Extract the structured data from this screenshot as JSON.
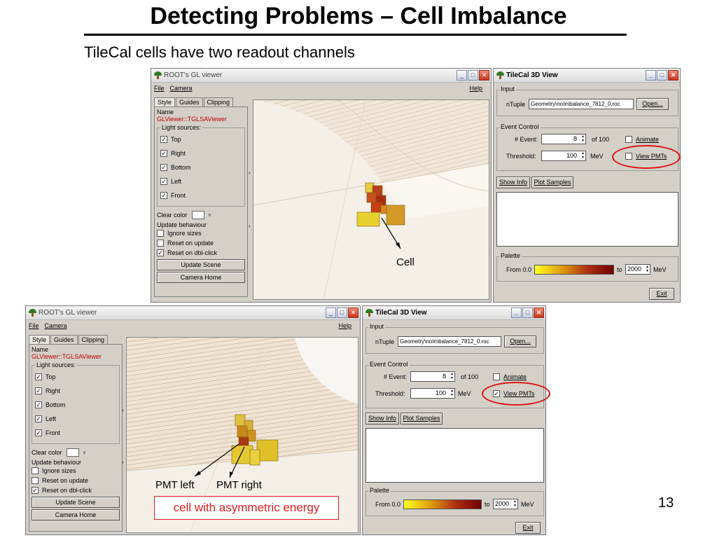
{
  "slide": {
    "title": "Detecting Problems – Cell Imbalance",
    "subtitle": "TileCal cells have two readout channels",
    "page_number": "13"
  },
  "gl_viewer": {
    "window_title": "ROOT's GL viewer",
    "menu": {
      "file": "File",
      "camera": "Camera",
      "help": "Help"
    },
    "tabs": [
      "Style",
      "Guides",
      "Clipping"
    ],
    "name_label": "Name",
    "name_value": "GLViewer::TGLSAViewer",
    "light_sources_label": "Light sources:",
    "lights": [
      "Top",
      "Right",
      "Bottom",
      "Left",
      "Front"
    ],
    "clear_color_label": "Clear color",
    "update_behaviour_label": "Update behaviour",
    "update_options": [
      {
        "label": "Ignore sizes",
        "checked": false
      },
      {
        "label": "Reset on update",
        "checked": false
      },
      {
        "label": "Reset on dbl-click",
        "checked": true
      }
    ],
    "update_scene_button": "Update Scene",
    "camera_home_button": "Camera Home"
  },
  "tilecal_view": {
    "window_title": "TileCal 3D View",
    "input_group": "Input",
    "ntuple_label": "nTuple",
    "ntuple_value": "Geometry\\noImbalance_7812_0.roc",
    "open_button": "Open...",
    "event_control_group": "Event Control",
    "event_label": "# Event:",
    "event_value": "8",
    "event_of": "of 100",
    "animate_label": "Animate",
    "threshold_label": "Threshold:",
    "threshold_value": "100",
    "threshold_unit": "MeV",
    "view_pmts_label": "View PMTs",
    "show_info_button": "Show Info",
    "plot_samples_button": "Plot Samples",
    "palette_group": "Palette",
    "from_label": "From 0.0",
    "to_label": "to",
    "to_value": "2000",
    "to_unit": "MeV",
    "exit_button": "Exit"
  },
  "panel_top": {
    "view_pmts_checked": false
  },
  "panel_bottom": {
    "view_pmts_checked": true
  },
  "annotations": {
    "cell": "Cell",
    "pmt_left": "PMT left",
    "pmt_right": "PMT right",
    "asymmetric": "cell with asymmetric energy"
  },
  "colors": {
    "highlight_red": "#e01010",
    "name_red": "#c00000"
  }
}
